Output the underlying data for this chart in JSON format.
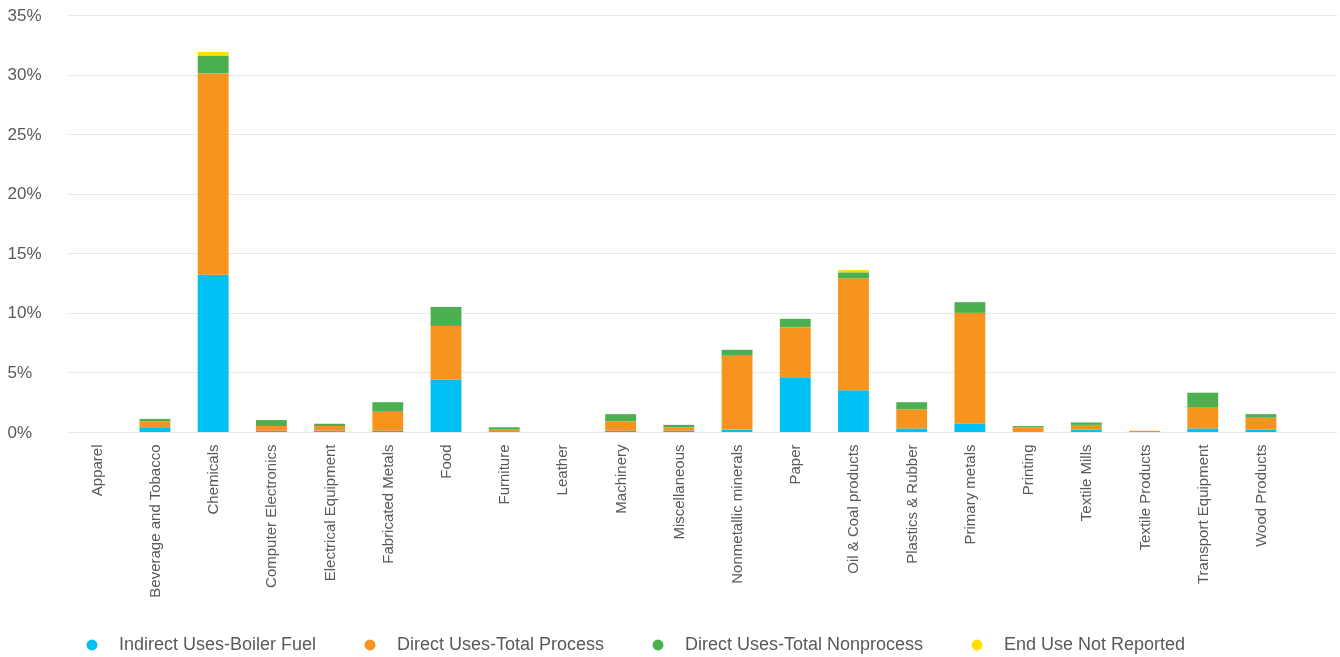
{
  "chart_data": {
    "type": "bar",
    "stacked": true,
    "categories": [
      "Apparel",
      "Beverage and Tobacco",
      "Chemicals",
      "Computer Electronics",
      "Electrical Equipment",
      "Fabricated Metals",
      "Food",
      "Furniture",
      "Leather",
      "Machinery",
      "Miscellaneous",
      "Nonmetallic minerals",
      "Paper",
      "Oil & Coal products",
      "Plastics & Rubber",
      "Primary metals",
      "Printing",
      "Textile Mills",
      "Textile Products",
      "Transport Equipment",
      "Wood Products"
    ],
    "series": [
      {
        "name": "Indirect Uses-Boiler Fuel",
        "color": "#00bff3",
        "values": [
          null,
          0.4,
          13.2,
          0.1,
          0.1,
          0.1,
          4.4,
          null,
          null,
          0.1,
          0.1,
          0.2,
          4.6,
          3.5,
          0.3,
          0.7,
          null,
          0.2,
          null,
          0.3,
          0.2
        ]
      },
      {
        "name": "Direct Uses-Total Process",
        "color": "#f7941d",
        "values": [
          null,
          0.5,
          16.9,
          0.4,
          0.4,
          1.6,
          4.5,
          0.2,
          null,
          0.8,
          0.3,
          6.2,
          4.2,
          9.4,
          1.6,
          9.3,
          0.4,
          0.4,
          0.1,
          1.8,
          1.0
        ]
      },
      {
        "name": "Direct Uses-Total Nonprocess",
        "color": "#4cb050",
        "values": [
          null,
          0.2,
          1.5,
          0.5,
          0.2,
          0.8,
          1.6,
          0.2,
          null,
          0.6,
          0.2,
          0.5,
          0.7,
          0.5,
          0.6,
          0.9,
          0.1,
          0.2,
          null,
          1.2,
          0.3
        ]
      },
      {
        "name": "End Use Not Reported",
        "color": "#ffde00",
        "values": [
          null,
          null,
          0.3,
          null,
          null,
          null,
          null,
          null,
          null,
          null,
          null,
          null,
          null,
          0.2,
          null,
          null,
          null,
          null,
          null,
          null,
          null
        ]
      }
    ],
    "ylim": [
      0,
      35
    ],
    "yticks": [
      {
        "value": 0,
        "label": "0%"
      },
      {
        "value": 5,
        "label": "5%"
      },
      {
        "value": 10,
        "label": "10%"
      },
      {
        "value": 15,
        "label": "15%"
      },
      {
        "value": 20,
        "label": "20%"
      },
      {
        "value": 25,
        "label": "25%"
      },
      {
        "value": 30,
        "label": "30%"
      },
      {
        "value": 35,
        "label": "35%"
      }
    ],
    "grid": "y",
    "legend": "bottom"
  }
}
